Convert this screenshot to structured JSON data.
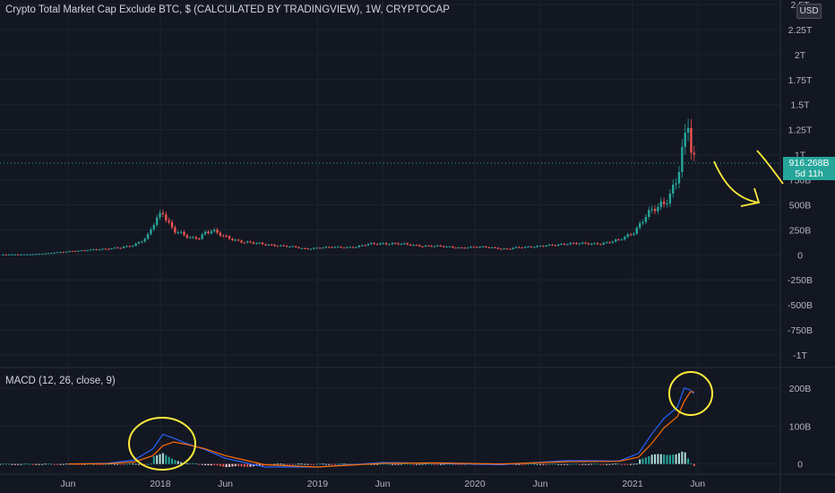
{
  "header": {
    "title": "Crypto Total Market Cap Exclude BTC, $ (CALCULATED BY TRADINGVIEW), 1W, CRYPTOCAP",
    "currency_badge": "USD"
  },
  "price_tag": {
    "value": "916.268B",
    "countdown": "5d 11h"
  },
  "macd": {
    "label": "MACD (12, 26, close, 9)"
  },
  "colors": {
    "background": "#131722",
    "up": "#26a69a",
    "down": "#ef5350",
    "macd_line": "#2962ff",
    "signal_line": "#ff6d00",
    "annotation": "#ffeb3b",
    "grid": "#1f2330"
  },
  "chart_data": [
    {
      "type": "candlestick",
      "title": "Crypto Total Market Cap Exclude BTC, $ (CALCULATED BY TRADINGVIEW), 1W, CRYPTOCAP",
      "y_unit": "USD",
      "y_ticks": [
        "2.5T",
        "2.25T",
        "2T",
        "1.75T",
        "1.5T",
        "1.25T",
        "1T",
        "750B",
        "500B",
        "250B",
        "0",
        "-250B",
        "-500B",
        "-750B",
        "-1T"
      ],
      "y_tick_values": [
        2500,
        2250,
        2000,
        1750,
        1500,
        1250,
        1000,
        750,
        500,
        250,
        0,
        -250,
        -500,
        -750,
        -1000
      ],
      "ylim": [
        -1000,
        2500
      ],
      "x_ticks": [
        "Jun",
        "2018",
        "Jun",
        "2019",
        "Jun",
        "2020",
        "Jun",
        "2021",
        "Jun"
      ],
      "x_tick_dates": [
        "2017-06-01",
        "2018-01-01",
        "2018-06-01",
        "2019-01-01",
        "2019-06-01",
        "2020-01-01",
        "2020-06-01",
        "2021-01-01",
        "2021-06-01"
      ],
      "current_value": "916.268B",
      "grid": true,
      "series": [
        {
          "name": "Total market cap excl. BTC (weekly close, billions USD)",
          "dates": [
            "2016-12-25",
            "2017-02-01",
            "2017-03-01",
            "2017-04-01",
            "2017-05-01",
            "2017-06-01",
            "2017-07-01",
            "2017-08-01",
            "2017-09-01",
            "2017-10-01",
            "2017-11-01",
            "2017-12-01",
            "2017-12-20",
            "2018-01-07",
            "2018-01-20",
            "2018-02-01",
            "2018-02-15",
            "2018-03-01",
            "2018-03-15",
            "2018-04-01",
            "2018-04-15",
            "2018-05-01",
            "2018-05-15",
            "2018-06-01",
            "2018-07-01",
            "2018-08-01",
            "2018-09-01",
            "2018-10-01",
            "2018-11-01",
            "2018-12-01",
            "2019-01-01",
            "2019-02-01",
            "2019-03-01",
            "2019-04-01",
            "2019-05-01",
            "2019-06-01",
            "2019-07-01",
            "2019-08-01",
            "2019-09-01",
            "2019-10-01",
            "2019-11-01",
            "2019-12-01",
            "2020-01-01",
            "2020-02-01",
            "2020-03-01",
            "2020-03-20",
            "2020-04-01",
            "2020-05-01",
            "2020-06-01",
            "2020-07-01",
            "2020-08-01",
            "2020-09-01",
            "2020-10-01",
            "2020-11-01",
            "2020-12-01",
            "2021-01-01",
            "2021-01-15",
            "2021-02-01",
            "2021-02-15",
            "2021-03-01",
            "2021-03-15",
            "2021-04-01",
            "2021-04-15",
            "2021-05-01",
            "2021-05-10",
            "2021-05-17",
            "2021-05-24"
          ],
          "values": [
            3,
            4,
            5,
            10,
            22,
            35,
            40,
            55,
            60,
            70,
            100,
            170,
            330,
            430,
            330,
            250,
            220,
            180,
            160,
            170,
            230,
            250,
            210,
            170,
            140,
            120,
            100,
            95,
            80,
            60,
            70,
            75,
            75,
            80,
            105,
            115,
            110,
            100,
            90,
            85,
            80,
            70,
            75,
            80,
            60,
            55,
            70,
            80,
            85,
            95,
            115,
            110,
            110,
            120,
            145,
            220,
            290,
            390,
            430,
            470,
            520,
            640,
            800,
            1100,
            1300,
            1000,
            916
          ]
        }
      ]
    },
    {
      "type": "line",
      "title": "MACD (12, 26, close, 9)",
      "y_ticks": [
        "200B",
        "100B",
        "0"
      ],
      "y_tick_values": [
        200,
        100,
        0
      ],
      "ylim": [
        -15,
        240
      ],
      "x_ticks": [
        "Jun",
        "2018",
        "Jun",
        "2019",
        "Jun",
        "2020",
        "Jun",
        "2021",
        "Jun"
      ],
      "grid": true,
      "series": [
        {
          "name": "MACD",
          "color": "#2962ff",
          "dates": [
            "2017-06-01",
            "2017-09-01",
            "2017-11-01",
            "2017-12-15",
            "2018-01-07",
            "2018-02-01",
            "2018-03-01",
            "2018-04-15",
            "2018-06-01",
            "2018-09-01",
            "2019-01-01",
            "2019-06-01",
            "2019-10-01",
            "2020-03-01",
            "2020-08-01",
            "2020-12-01",
            "2021-01-15",
            "2021-02-15",
            "2021-03-15",
            "2021-04-15",
            "2021-05-01",
            "2021-05-15",
            "2021-05-24"
          ],
          "values": [
            0,
            2,
            10,
            40,
            78,
            68,
            55,
            38,
            15,
            -8,
            -8,
            4,
            2,
            -2,
            9,
            8,
            28,
            80,
            120,
            150,
            200,
            195,
            185
          ]
        },
        {
          "name": "Signal",
          "color": "#ff6d00",
          "dates": [
            "2017-06-01",
            "2017-09-01",
            "2017-11-01",
            "2017-12-15",
            "2018-01-07",
            "2018-02-01",
            "2018-03-01",
            "2018-04-15",
            "2018-06-01",
            "2018-09-01",
            "2019-01-01",
            "2019-06-01",
            "2019-10-01",
            "2020-03-01",
            "2020-08-01",
            "2020-12-01",
            "2021-01-15",
            "2021-02-15",
            "2021-03-15",
            "2021-04-15",
            "2021-05-01",
            "2021-05-15",
            "2021-05-24"
          ],
          "values": [
            0,
            1,
            5,
            22,
            48,
            58,
            52,
            40,
            22,
            -2,
            -8,
            2,
            3,
            0,
            6,
            7,
            18,
            55,
            95,
            125,
            165,
            190,
            190
          ]
        },
        {
          "name": "Histogram",
          "dates": [
            "2017-12-15",
            "2018-01-07",
            "2018-02-01",
            "2018-03-01",
            "2018-04-15",
            "2018-06-01",
            "2018-09-01",
            "2021-01-15",
            "2021-02-15",
            "2021-03-15",
            "2021-04-15",
            "2021-05-01",
            "2021-05-15",
            "2021-05-24"
          ],
          "values": [
            18,
            30,
            10,
            3,
            -2,
            -7,
            -6,
            10,
            25,
            25,
            25,
            35,
            5,
            -5
          ]
        }
      ]
    }
  ]
}
